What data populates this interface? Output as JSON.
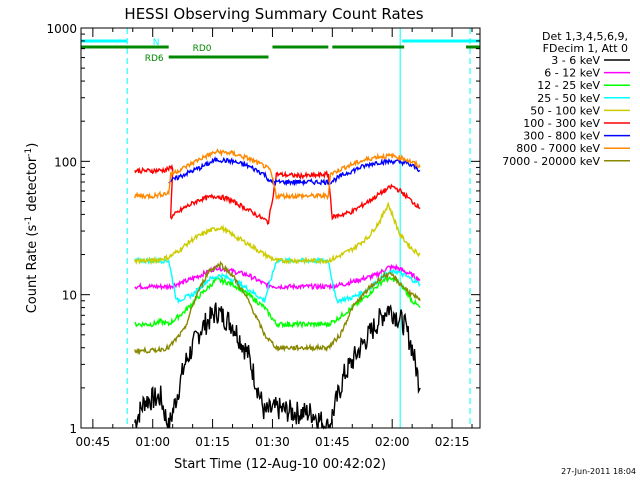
{
  "chart_data": {
    "type": "line",
    "title": "HESSI Observing Summary Count Rates",
    "xlabel": "Start Time (12-Aug-10 00:42:02)",
    "ylabel_main": "Count Rate (s",
    "ylabel_sup1": "-1",
    "ylabel_mid": " detector",
    "ylabel_sup2": "-1",
    "ylabel_end": ")",
    "y_scale": "log",
    "ylim": [
      1,
      1000
    ],
    "xlim_minutes": [
      42.03,
      142
    ],
    "x_ticks": [
      {
        "min": 45,
        "label": "00:45"
      },
      {
        "min": 60,
        "label": "01:00"
      },
      {
        "min": 75,
        "label": "01:15"
      },
      {
        "min": 90,
        "label": "01:30"
      },
      {
        "min": 105,
        "label": "01:45"
      },
      {
        "min": 120,
        "label": "02:00"
      },
      {
        "min": 135,
        "label": "02:15"
      }
    ],
    "y_ticks": [
      {
        "value": 1,
        "label": "1"
      },
      {
        "value": 10,
        "label": "10"
      },
      {
        "value": 100,
        "label": "100"
      },
      {
        "value": 1000,
        "label": "1000"
      }
    ],
    "legend_header": [
      "Det 1,3,4,5,6,9,",
      "FDecim 1, Att 0"
    ],
    "legend_position": "right",
    "series": [
      {
        "name": "3 - 6 keV",
        "color": "#000000",
        "points": [
          [
            55.5,
            1.1
          ],
          [
            58,
            1.6
          ],
          [
            62,
            1.7
          ],
          [
            64,
            1.0
          ],
          [
            68,
            3
          ],
          [
            72,
            5.5
          ],
          [
            76,
            7.5
          ],
          [
            80,
            6
          ],
          [
            84,
            3.5
          ],
          [
            88,
            1.3
          ],
          [
            91,
            1.4
          ],
          [
            96,
            1.3
          ],
          [
            100,
            1.3
          ],
          [
            104,
            1.0
          ],
          [
            108,
            2.5
          ],
          [
            112,
            4
          ],
          [
            116,
            6
          ],
          [
            119,
            8
          ],
          [
            121,
            7
          ],
          [
            123,
            6
          ],
          [
            125,
            4
          ],
          [
            127,
            2
          ]
        ]
      },
      {
        "name": "6 - 12 keV",
        "color": "#ff00ff",
        "points": [
          [
            55.5,
            11.5
          ],
          [
            60,
            11.5
          ],
          [
            64,
            11.5
          ],
          [
            68,
            12.5
          ],
          [
            72,
            14
          ],
          [
            76,
            16
          ],
          [
            80,
            15
          ],
          [
            84,
            14
          ],
          [
            88,
            12
          ],
          [
            91,
            11.5
          ],
          [
            96,
            11.5
          ],
          [
            100,
            11.5
          ],
          [
            104,
            11.5
          ],
          [
            108,
            12
          ],
          [
            112,
            13
          ],
          [
            116,
            14
          ],
          [
            119,
            16
          ],
          [
            121,
            16
          ],
          [
            123,
            15
          ],
          [
            125,
            14
          ],
          [
            127,
            13
          ]
        ]
      },
      {
        "name": "12 - 25 keV",
        "color": "#00ff00",
        "points": [
          [
            55.5,
            6
          ],
          [
            60,
            6
          ],
          [
            62,
            6.3
          ],
          [
            64,
            6
          ],
          [
            68,
            7.5
          ],
          [
            72,
            10
          ],
          [
            76,
            13
          ],
          [
            80,
            12
          ],
          [
            84,
            10
          ],
          [
            88,
            8
          ],
          [
            91,
            6
          ],
          [
            96,
            6
          ],
          [
            100,
            6
          ],
          [
            104,
            6
          ],
          [
            106,
            6.5
          ],
          [
            110,
            8
          ],
          [
            114,
            10
          ],
          [
            118,
            13
          ],
          [
            121,
            13
          ],
          [
            123,
            11
          ],
          [
            125,
            9
          ],
          [
            127,
            8
          ]
        ]
      },
      {
        "name": "25 - 50 keV",
        "color": "#00ffff",
        "points": [
          [
            55.5,
            18
          ],
          [
            60,
            18
          ],
          [
            64,
            18
          ],
          [
            66,
            9
          ],
          [
            70,
            10
          ],
          [
            74,
            13
          ],
          [
            77,
            14
          ],
          [
            80,
            13
          ],
          [
            84,
            11
          ],
          [
            88,
            9
          ],
          [
            91,
            18
          ],
          [
            96,
            18
          ],
          [
            100,
            18
          ],
          [
            104,
            18
          ],
          [
            106,
            9
          ],
          [
            110,
            9.5
          ],
          [
            114,
            11
          ],
          [
            118,
            14
          ],
          [
            121,
            15
          ],
          [
            123,
            14
          ],
          [
            125,
            13
          ],
          [
            127,
            12
          ]
        ]
      },
      {
        "name": "50 - 100 keV",
        "color": "#cccc00",
        "points": [
          [
            55.5,
            18
          ],
          [
            60,
            18
          ],
          [
            64,
            19
          ],
          [
            67,
            22
          ],
          [
            70,
            26
          ],
          [
            74,
            30
          ],
          [
            77,
            32
          ],
          [
            80,
            28
          ],
          [
            84,
            24
          ],
          [
            88,
            20
          ],
          [
            91,
            18
          ],
          [
            96,
            18
          ],
          [
            100,
            18
          ],
          [
            104,
            18
          ],
          [
            106,
            19
          ],
          [
            110,
            22
          ],
          [
            114,
            27
          ],
          [
            117,
            36
          ],
          [
            119,
            48
          ],
          [
            120,
            40
          ],
          [
            122,
            28
          ],
          [
            125,
            22
          ],
          [
            127,
            20
          ]
        ]
      },
      {
        "name": "100 - 300 keV",
        "color": "#ff0000",
        "points": [
          [
            55.5,
            85
          ],
          [
            60,
            85
          ],
          [
            63,
            86
          ],
          [
            65,
            90
          ],
          [
            64.5,
            38
          ],
          [
            68,
            45
          ],
          [
            72,
            52
          ],
          [
            76,
            55
          ],
          [
            79,
            52
          ],
          [
            83,
            45
          ],
          [
            87,
            38
          ],
          [
            89,
            35
          ],
          [
            91,
            80
          ],
          [
            96,
            78
          ],
          [
            100,
            78
          ],
          [
            104,
            80
          ],
          [
            105,
            38
          ],
          [
            110,
            42
          ],
          [
            114,
            50
          ],
          [
            118,
            60
          ],
          [
            120,
            65
          ],
          [
            122,
            60
          ],
          [
            125,
            50
          ],
          [
            127,
            45
          ]
        ]
      },
      {
        "name": "300 - 800 keV",
        "color": "#0000ff",
        "points": [
          [
            64,
            70
          ],
          [
            68,
            80
          ],
          [
            72,
            90
          ],
          [
            76,
            103
          ],
          [
            80,
            100
          ],
          [
            84,
            92
          ],
          [
            88,
            80
          ],
          [
            89.5,
            70
          ],
          [
            104.5,
            70
          ],
          [
            108,
            80
          ],
          [
            112,
            90
          ],
          [
            116,
            98
          ],
          [
            120,
            100
          ],
          [
            123,
            98
          ],
          [
            126,
            90
          ],
          [
            127,
            85
          ]
        ]
      },
      {
        "name": "800 - 7000 keV",
        "color": "#ff8800",
        "points": [
          [
            55.5,
            55
          ],
          [
            60,
            55
          ],
          [
            64,
            58
          ],
          [
            64.5,
            80
          ],
          [
            68,
            90
          ],
          [
            72,
            105
          ],
          [
            76,
            118
          ],
          [
            80,
            115
          ],
          [
            84,
            105
          ],
          [
            88,
            92
          ],
          [
            89.5,
            85
          ],
          [
            91,
            55
          ],
          [
            96,
            55
          ],
          [
            100,
            55
          ],
          [
            104,
            55
          ],
          [
            104.5,
            80
          ],
          [
            108,
            90
          ],
          [
            112,
            100
          ],
          [
            116,
            108
          ],
          [
            120,
            110
          ],
          [
            123,
            105
          ],
          [
            126,
            95
          ],
          [
            127,
            90
          ]
        ]
      },
      {
        "name": "7000 - 20000 keV",
        "color": "#888800",
        "points": [
          [
            55.5,
            3.8
          ],
          [
            60,
            3.8
          ],
          [
            64,
            4
          ],
          [
            68,
            5.5
          ],
          [
            71,
            10
          ],
          [
            74,
            15
          ],
          [
            77,
            17
          ],
          [
            80,
            14
          ],
          [
            84,
            9
          ],
          [
            88,
            5
          ],
          [
            91,
            4
          ],
          [
            96,
            4
          ],
          [
            100,
            4
          ],
          [
            104,
            4
          ],
          [
            107,
            5
          ],
          [
            110,
            8
          ],
          [
            114,
            11
          ],
          [
            118,
            14
          ],
          [
            120,
            14
          ],
          [
            122,
            12
          ],
          [
            125,
            10
          ],
          [
            127,
            9
          ]
        ]
      }
    ],
    "state_bars": [
      {
        "label": "N",
        "color": "#00ffff",
        "row": 0,
        "segments": [
          [
            42.03,
            53.5
          ],
          [
            122.5,
            142
          ]
        ],
        "label_at": 60
      },
      {
        "label": "RD0",
        "color": "#008800",
        "row": 1,
        "segments": [
          [
            42.03,
            64
          ],
          [
            90,
            104
          ],
          [
            105,
            123
          ],
          [
            138.5,
            142
          ]
        ],
        "label_at": 70
      },
      {
        "label": "RD6",
        "color": "#008800",
        "row": 2,
        "segments": [
          [
            64,
            89
          ]
        ],
        "label_at": 58
      }
    ],
    "vertical_markers": [
      {
        "min": 42.03,
        "color": "#00ffff",
        "style": "solid"
      },
      {
        "min": 122.0,
        "color": "#00ffff",
        "style": "solid"
      },
      {
        "min": 53.6,
        "color": "#00ffff",
        "style": "dashed"
      },
      {
        "min": 139.5,
        "color": "#00ffff",
        "style": "dashed"
      }
    ]
  },
  "footer": {
    "date": "27-Jun-2011 18:04"
  }
}
